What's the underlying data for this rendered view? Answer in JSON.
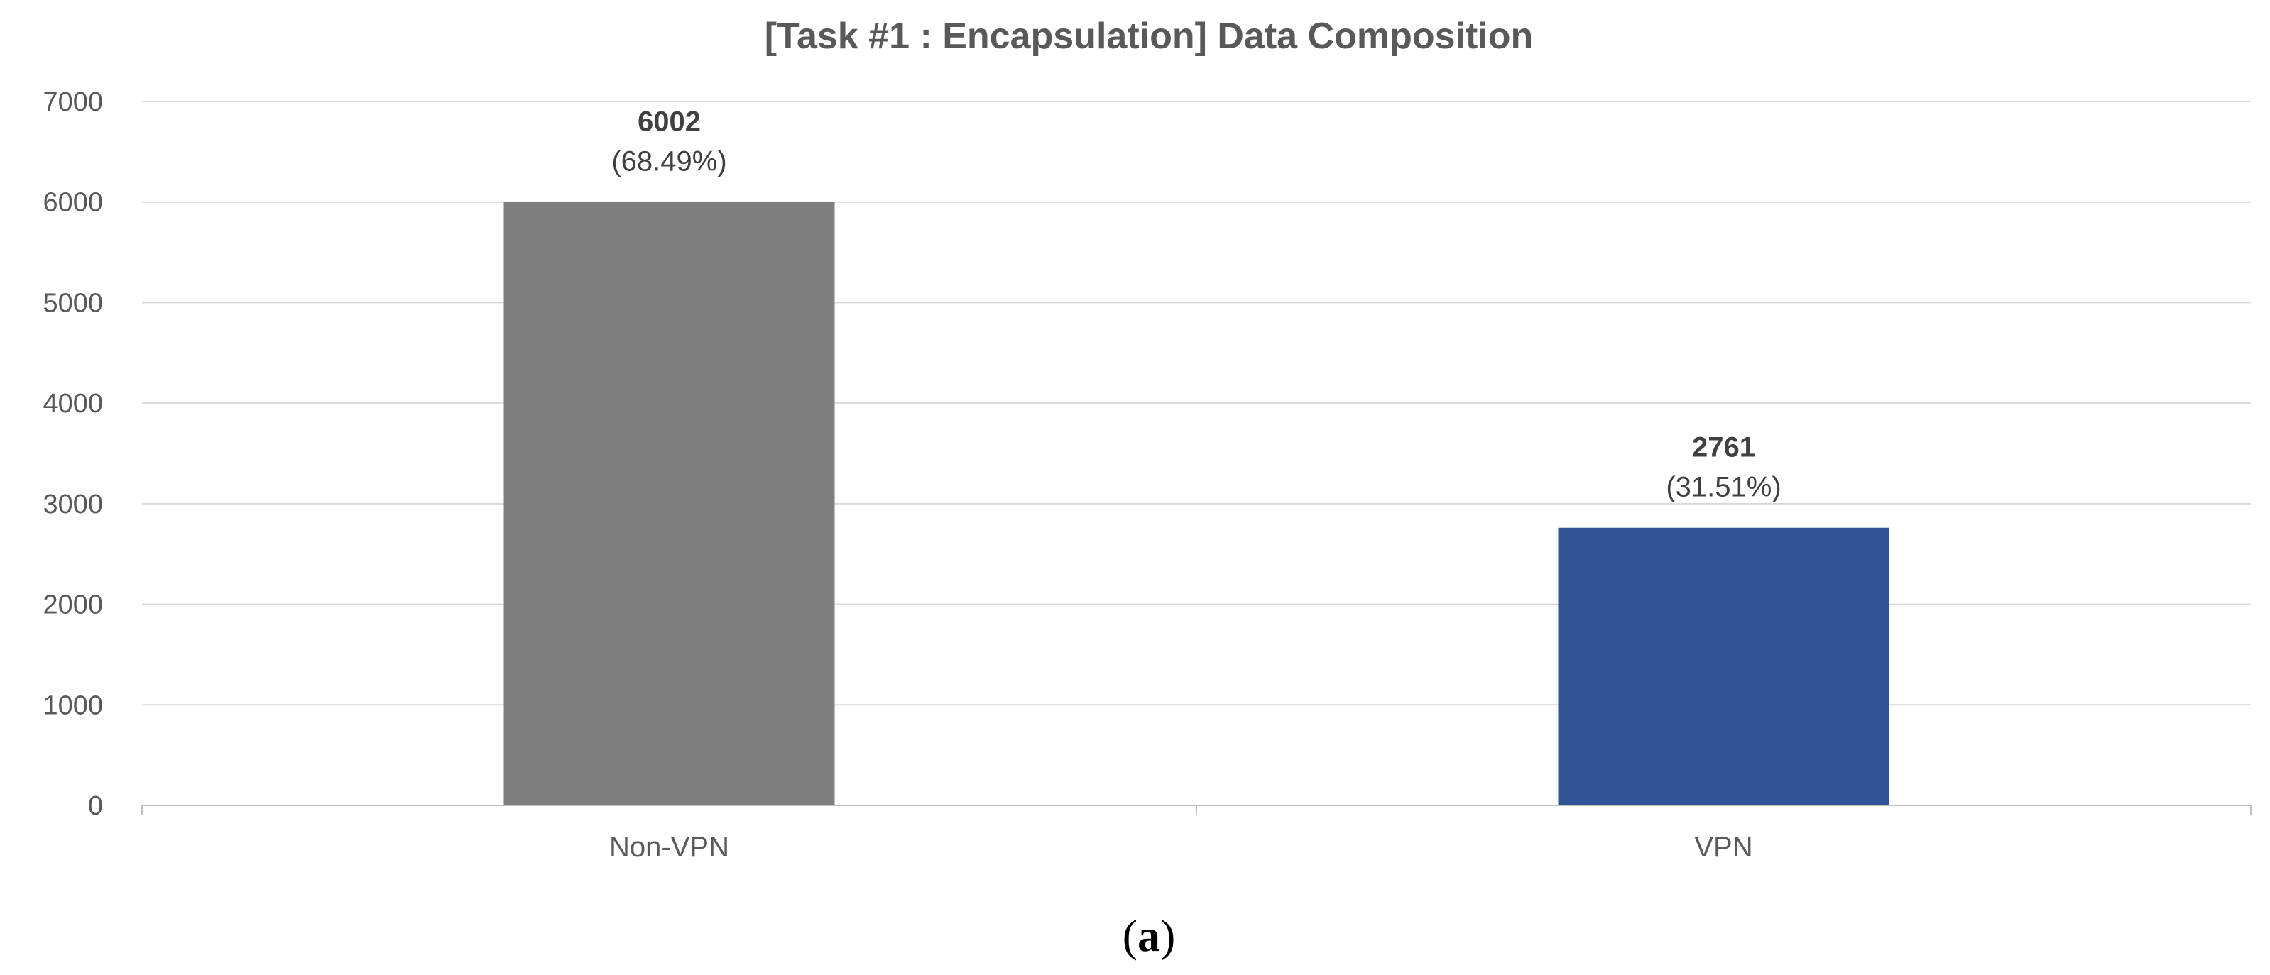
{
  "chart_data": {
    "type": "bar",
    "title": "[Task #1 : Encapsulation] Data Composition",
    "categories": [
      "Non-VPN",
      "VPN"
    ],
    "values": [
      6002,
      2761
    ],
    "percent_labels": [
      "(68.49%)",
      "(31.51%)"
    ],
    "colors": [
      "#7f7f7f",
      "#2f5597"
    ],
    "xlabel": "",
    "ylabel": "",
    "ylim": [
      0,
      7000
    ],
    "yticks": [
      0,
      1000,
      2000,
      3000,
      4000,
      5000,
      6000,
      7000
    ],
    "grid": true,
    "legend": "none"
  },
  "panel_label": {
    "open": "(",
    "letter": "a",
    "close": ")"
  }
}
